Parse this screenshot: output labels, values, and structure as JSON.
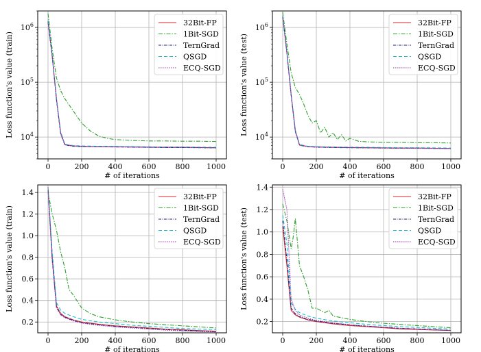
{
  "colors": {
    "32bit": "#d62728",
    "1bit": "#2ca02c",
    "terngrad": "#1f1f7a",
    "qsgd": "#17becf",
    "ecq": "#9b2fae",
    "grid": "#b0b0b0"
  },
  "legend": [
    "32Bit-FP",
    "1Bit-SGD",
    "TernGrad",
    "QSGD",
    "ECQ-SGD"
  ],
  "chart_data": [
    {
      "type": "line",
      "scale": "log",
      "xlabel": "# of iterations",
      "ylabel": "Loss function's value (train)",
      "xlim": [
        0,
        1000
      ],
      "xticks": [
        0,
        200,
        400,
        600,
        800,
        1000
      ],
      "ylim": [
        4000,
        2000000
      ],
      "yticks": [
        {
          "value": 10000,
          "base": "10",
          "exp": "4"
        },
        {
          "value": 100000,
          "base": "10",
          "exp": "5"
        },
        {
          "value": 1000000,
          "base": "10",
          "exp": "6"
        }
      ],
      "series": [
        {
          "name": "32Bit-FP",
          "x": [
            0,
            25,
            50,
            75,
            100,
            150,
            200,
            300,
            400,
            500,
            600,
            700,
            800,
            900,
            1000
          ],
          "values": [
            1300000,
            300000,
            50000,
            12000,
            7300,
            6900,
            6800,
            6700,
            6650,
            6600,
            6550,
            6500,
            6500,
            6450,
            6400
          ]
        },
        {
          "name": "1Bit-SGD",
          "x": [
            0,
            25,
            50,
            75,
            100,
            150,
            200,
            250,
            300,
            350,
            400,
            500,
            600,
            700,
            800,
            900,
            1000
          ],
          "values": [
            1800000,
            400000,
            120000,
            70000,
            50000,
            30000,
            18000,
            13000,
            10500,
            9500,
            9000,
            8700,
            8500,
            8500,
            8400,
            8400,
            8300
          ]
        },
        {
          "name": "TernGrad",
          "x": [
            0,
            25,
            50,
            75,
            100,
            150,
            200,
            300,
            400,
            500,
            600,
            700,
            800,
            900,
            1000
          ],
          "values": [
            1250000,
            290000,
            48000,
            11500,
            7200,
            6800,
            6700,
            6650,
            6600,
            6550,
            6500,
            6450,
            6450,
            6400,
            6350
          ]
        },
        {
          "name": "QSGD",
          "x": [
            0,
            25,
            50,
            75,
            100,
            150,
            200,
            300,
            400,
            500,
            600,
            700,
            800,
            900,
            1000
          ],
          "values": [
            1350000,
            310000,
            52000,
            12500,
            7400,
            7000,
            6900,
            6800,
            6750,
            6700,
            6650,
            6600,
            6600,
            6550,
            6500
          ]
        },
        {
          "name": "ECQ-SGD",
          "x": [
            0,
            25,
            50,
            75,
            100,
            150,
            200,
            300,
            400,
            500,
            600,
            700,
            800,
            900,
            1000
          ],
          "values": [
            1280000,
            295000,
            49000,
            11800,
            7250,
            6850,
            6750,
            6700,
            6650,
            6600,
            6550,
            6500,
            6500,
            6450,
            6400
          ]
        }
      ]
    },
    {
      "type": "line",
      "scale": "log",
      "xlabel": "# of iterations",
      "ylabel": "Loss function's value (test)",
      "xlim": [
        0,
        1000
      ],
      "xticks": [
        0,
        200,
        400,
        600,
        800,
        1000
      ],
      "ylim": [
        4000,
        2000000
      ],
      "yticks": [
        {
          "value": 10000,
          "base": "10",
          "exp": "4"
        },
        {
          "value": 100000,
          "base": "10",
          "exp": "5"
        },
        {
          "value": 1000000,
          "base": "10",
          "exp": "6"
        }
      ],
      "series": [
        {
          "name": "32Bit-FP",
          "x": [
            0,
            25,
            50,
            75,
            100,
            150,
            200,
            300,
            400,
            500,
            600,
            700,
            800,
            900,
            1000
          ],
          "values": [
            1600000,
            350000,
            60000,
            13000,
            7200,
            6700,
            6600,
            6500,
            6450,
            6400,
            6350,
            6300,
            6300,
            6250,
            6200
          ]
        },
        {
          "name": "1Bit-SGD",
          "x": [
            0,
            25,
            50,
            75,
            100,
            125,
            150,
            175,
            200,
            225,
            250,
            275,
            300,
            325,
            350,
            375,
            400,
            450,
            500,
            600,
            700,
            800,
            900,
            1000
          ],
          "values": [
            1900000,
            500000,
            150000,
            80000,
            60000,
            40000,
            25000,
            18000,
            20000,
            12000,
            15000,
            10000,
            12000,
            9000,
            11000,
            8500,
            9500,
            8400,
            8200,
            8000,
            8000,
            7900,
            7900,
            7800
          ]
        },
        {
          "name": "TernGrad",
          "x": [
            0,
            25,
            50,
            75,
            100,
            150,
            200,
            300,
            400,
            500,
            600,
            700,
            800,
            900,
            1000
          ],
          "values": [
            1550000,
            340000,
            58000,
            12600,
            7100,
            6650,
            6550,
            6450,
            6400,
            6350,
            6300,
            6250,
            6250,
            6200,
            6150
          ]
        },
        {
          "name": "QSGD",
          "x": [
            0,
            25,
            50,
            75,
            100,
            150,
            200,
            300,
            400,
            500,
            600,
            700,
            800,
            900,
            1000
          ],
          "values": [
            1650000,
            360000,
            62000,
            13500,
            7300,
            6800,
            6700,
            6600,
            6550,
            6500,
            6450,
            6400,
            6400,
            6350,
            6300
          ]
        },
        {
          "name": "ECQ-SGD",
          "x": [
            0,
            25,
            50,
            75,
            100,
            150,
            200,
            300,
            400,
            500,
            600,
            700,
            800,
            900,
            1000
          ],
          "values": [
            1580000,
            345000,
            59000,
            12800,
            7150,
            6700,
            6600,
            6500,
            6450,
            6400,
            6350,
            6300,
            6300,
            6250,
            6200
          ]
        }
      ]
    },
    {
      "type": "line",
      "scale": "linear",
      "xlabel": "# of iterations",
      "ylabel": "Loss function's value (train)",
      "xlim": [
        0,
        1000
      ],
      "xticks": [
        0,
        200,
        400,
        600,
        800,
        1000
      ],
      "ylim": [
        0.1,
        1.47
      ],
      "yticks": [
        {
          "value": 0.2,
          "label": "0.2"
        },
        {
          "value": 0.4,
          "label": "0.4"
        },
        {
          "value": 0.6,
          "label": "0.6"
        },
        {
          "value": 0.8,
          "label": "0.8"
        },
        {
          "value": 1.0,
          "label": "1.0"
        },
        {
          "value": 1.2,
          "label": "1.2"
        },
        {
          "value": 1.4,
          "label": "1.4"
        }
      ],
      "series": [
        {
          "name": "32Bit-FP",
          "x": [
            0,
            25,
            50,
            75,
            100,
            150,
            200,
            300,
            400,
            500,
            600,
            700,
            800,
            900,
            1000
          ],
          "values": [
            1.45,
            0.8,
            0.35,
            0.28,
            0.25,
            0.22,
            0.2,
            0.18,
            0.165,
            0.155,
            0.145,
            0.135,
            0.128,
            0.12,
            0.115
          ]
        },
        {
          "name": "1Bit-SGD",
          "x": [
            0,
            25,
            50,
            75,
            100,
            125,
            150,
            200,
            250,
            300,
            400,
            500,
            600,
            700,
            800,
            900,
            1000
          ],
          "values": [
            1.4,
            1.2,
            1.05,
            0.85,
            0.7,
            0.5,
            0.45,
            0.33,
            0.28,
            0.25,
            0.22,
            0.2,
            0.185,
            0.175,
            0.165,
            0.155,
            0.145
          ]
        },
        {
          "name": "TernGrad",
          "x": [
            0,
            25,
            50,
            75,
            100,
            150,
            200,
            300,
            400,
            500,
            600,
            700,
            800,
            900,
            1000
          ],
          "values": [
            1.43,
            0.78,
            0.34,
            0.27,
            0.245,
            0.215,
            0.195,
            0.175,
            0.16,
            0.15,
            0.14,
            0.13,
            0.124,
            0.117,
            0.112
          ]
        },
        {
          "name": "QSGD",
          "x": [
            0,
            25,
            50,
            75,
            100,
            150,
            200,
            300,
            400,
            500,
            600,
            700,
            800,
            900,
            1000
          ],
          "values": [
            1.44,
            0.85,
            0.38,
            0.31,
            0.28,
            0.25,
            0.225,
            0.2,
            0.185,
            0.17,
            0.16,
            0.15,
            0.14,
            0.135,
            0.13
          ]
        },
        {
          "name": "ECQ-SGD",
          "x": [
            0,
            25,
            50,
            75,
            100,
            150,
            200,
            300,
            400,
            500,
            600,
            700,
            800,
            900,
            1000
          ],
          "values": [
            1.42,
            0.77,
            0.33,
            0.265,
            0.24,
            0.21,
            0.19,
            0.17,
            0.155,
            0.145,
            0.135,
            0.125,
            0.118,
            0.112,
            0.108
          ]
        }
      ]
    },
    {
      "type": "line",
      "scale": "linear",
      "xlabel": "# of iterations",
      "ylabel": "Loss function's value (test)",
      "xlim": [
        0,
        1000
      ],
      "xticks": [
        0,
        200,
        400,
        600,
        800,
        1000
      ],
      "ylim": [
        0.1,
        1.42
      ],
      "yticks": [
        {
          "value": 0.2,
          "label": "0.2"
        },
        {
          "value": 0.4,
          "label": "0.4"
        },
        {
          "value": 0.6,
          "label": "0.6"
        },
        {
          "value": 0.8,
          "label": "0.8"
        },
        {
          "value": 1.0,
          "label": "1.0"
        },
        {
          "value": 1.2,
          "label": "1.2"
        },
        {
          "value": 1.4,
          "label": "1.4"
        }
      ],
      "series": [
        {
          "name": "32Bit-FP",
          "x": [
            0,
            25,
            50,
            75,
            100,
            150,
            200,
            300,
            400,
            500,
            600,
            700,
            800,
            900,
            1000
          ],
          "values": [
            1.05,
            0.7,
            0.3,
            0.26,
            0.24,
            0.215,
            0.2,
            0.18,
            0.165,
            0.155,
            0.145,
            0.135,
            0.13,
            0.125,
            0.12
          ]
        },
        {
          "name": "1Bit-SGD",
          "x": [
            0,
            25,
            50,
            62,
            75,
            100,
            125,
            150,
            175,
            200,
            250,
            275,
            300,
            400,
            500,
            600,
            700,
            800,
            900,
            1000
          ],
          "values": [
            1.25,
            1.1,
            0.85,
            0.95,
            1.12,
            0.7,
            0.6,
            0.48,
            0.32,
            0.32,
            0.28,
            0.3,
            0.25,
            0.22,
            0.2,
            0.185,
            0.175,
            0.165,
            0.155,
            0.145
          ]
        },
        {
          "name": "TernGrad",
          "x": [
            0,
            25,
            50,
            75,
            100,
            150,
            200,
            300,
            400,
            500,
            600,
            700,
            800,
            900,
            1000
          ],
          "values": [
            1.1,
            0.75,
            0.32,
            0.27,
            0.245,
            0.22,
            0.205,
            0.185,
            0.17,
            0.16,
            0.15,
            0.14,
            0.135,
            0.128,
            0.122
          ]
        },
        {
          "name": "QSGD",
          "x": [
            0,
            25,
            50,
            75,
            100,
            150,
            200,
            300,
            400,
            500,
            600,
            700,
            800,
            900,
            1000
          ],
          "values": [
            1.15,
            0.9,
            0.37,
            0.31,
            0.28,
            0.25,
            0.23,
            0.205,
            0.19,
            0.175,
            0.165,
            0.155,
            0.148,
            0.14,
            0.135
          ]
        },
        {
          "name": "ECQ-SGD",
          "x": [
            0,
            25,
            50,
            75,
            100,
            150,
            200,
            300,
            400,
            500,
            600,
            700,
            800,
            900,
            1000
          ],
          "values": [
            1.38,
            1.2,
            0.4,
            0.3,
            0.26,
            0.23,
            0.21,
            0.19,
            0.172,
            0.16,
            0.15,
            0.14,
            0.134,
            0.127,
            0.121
          ]
        }
      ]
    }
  ]
}
